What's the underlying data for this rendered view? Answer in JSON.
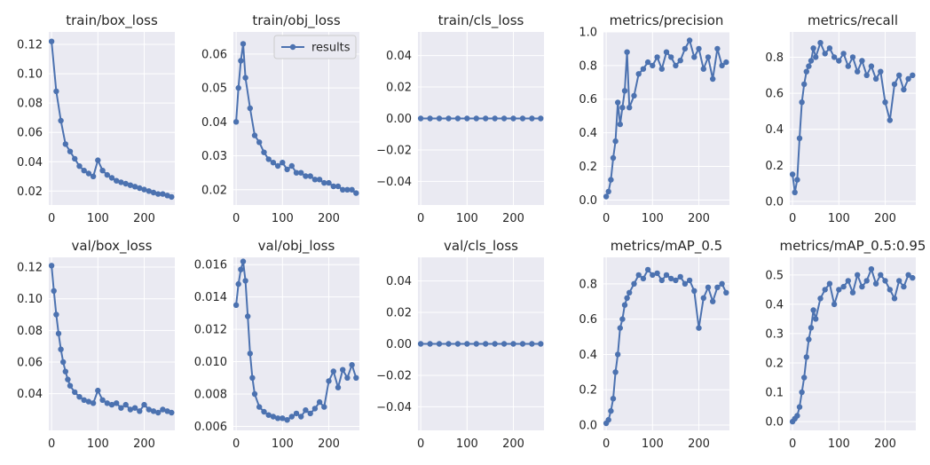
{
  "figure": {
    "background": "#ffffff",
    "panel_background": "#eaeaf2",
    "grid_color": "#ffffff",
    "series_color": "#4c72b0",
    "legend_label": "results",
    "legend_panel": "train/obj_loss",
    "legend_position": "top-right"
  },
  "chart_data": [
    {
      "type": "line",
      "title": "train/box_loss",
      "xlabel": "",
      "ylabel": "",
      "xlim": [
        -6,
        266
      ],
      "ylim": [
        0.0105,
        0.1285
      ],
      "xticks": [
        "0",
        "100",
        "200"
      ],
      "yticks": [
        "0.02",
        "0.04",
        "0.06",
        "0.08",
        "0.10",
        "0.12"
      ],
      "x": [
        0,
        10,
        20,
        30,
        40,
        50,
        60,
        70,
        80,
        90,
        100,
        110,
        120,
        130,
        140,
        150,
        160,
        170,
        180,
        190,
        200,
        210,
        220,
        230,
        240,
        250,
        259
      ],
      "series": [
        {
          "name": "results",
          "values": [
            0.122,
            0.088,
            0.068,
            0.052,
            0.047,
            0.042,
            0.037,
            0.034,
            0.032,
            0.03,
            0.041,
            0.034,
            0.031,
            0.029,
            0.027,
            0.026,
            0.025,
            0.024,
            0.023,
            0.022,
            0.021,
            0.02,
            0.019,
            0.018,
            0.018,
            0.017,
            0.016
          ]
        }
      ]
    },
    {
      "type": "line",
      "title": "train/obj_loss",
      "xlabel": "",
      "ylabel": "",
      "xlim": [
        -6,
        266
      ],
      "ylim": [
        0.0155,
        0.0665
      ],
      "xticks": [
        "0",
        "100",
        "200"
      ],
      "yticks": [
        "0.02",
        "0.03",
        "0.04",
        "0.05",
        "0.06"
      ],
      "x": [
        0,
        5,
        10,
        15,
        20,
        30,
        40,
        50,
        60,
        70,
        80,
        90,
        100,
        110,
        120,
        130,
        140,
        150,
        160,
        170,
        180,
        190,
        200,
        210,
        220,
        230,
        240,
        250,
        259
      ],
      "series": [
        {
          "name": "results",
          "values": [
            0.04,
            0.05,
            0.058,
            0.063,
            0.053,
            0.044,
            0.036,
            0.034,
            0.031,
            0.029,
            0.028,
            0.027,
            0.028,
            0.026,
            0.027,
            0.025,
            0.025,
            0.024,
            0.024,
            0.023,
            0.023,
            0.022,
            0.022,
            0.021,
            0.021,
            0.02,
            0.02,
            0.02,
            0.019
          ]
        }
      ]
    },
    {
      "type": "line",
      "title": "train/cls_loss",
      "xlabel": "",
      "ylabel": "",
      "xlim": [
        -6,
        266
      ],
      "ylim": [
        -0.055,
        0.055
      ],
      "xticks": [
        "0",
        "100",
        "200"
      ],
      "yticks": [
        "−0.04",
        "−0.02",
        "0.00",
        "0.02",
        "0.04"
      ],
      "x": [
        0,
        20,
        40,
        60,
        80,
        100,
        120,
        140,
        160,
        180,
        200,
        220,
        240,
        259
      ],
      "series": [
        {
          "name": "results",
          "values": [
            0,
            0,
            0,
            0,
            0,
            0,
            0,
            0,
            0,
            0,
            0,
            0,
            0,
            0
          ]
        }
      ]
    },
    {
      "type": "line",
      "title": "metrics/precision",
      "xlabel": "",
      "ylabel": "",
      "xlim": [
        -6,
        266
      ],
      "ylim": [
        -0.03,
        1.0
      ],
      "xticks": [
        "0",
        "100",
        "200"
      ],
      "yticks": [
        "0.0",
        "0.2",
        "0.4",
        "0.6",
        "0.8",
        "1.0"
      ],
      "x": [
        0,
        5,
        10,
        15,
        20,
        25,
        30,
        35,
        40,
        45,
        50,
        60,
        70,
        80,
        90,
        100,
        110,
        120,
        130,
        140,
        150,
        160,
        170,
        180,
        190,
        200,
        210,
        220,
        230,
        240,
        250,
        259
      ],
      "series": [
        {
          "name": "results",
          "values": [
            0.02,
            0.05,
            0.12,
            0.25,
            0.35,
            0.58,
            0.45,
            0.55,
            0.65,
            0.88,
            0.55,
            0.62,
            0.75,
            0.78,
            0.82,
            0.8,
            0.85,
            0.78,
            0.88,
            0.85,
            0.8,
            0.83,
            0.9,
            0.95,
            0.85,
            0.9,
            0.78,
            0.85,
            0.72,
            0.9,
            0.8,
            0.82
          ]
        }
      ]
    },
    {
      "type": "line",
      "title": "metrics/recall",
      "xlabel": "",
      "ylabel": "",
      "xlim": [
        -6,
        266
      ],
      "ylim": [
        -0.02,
        0.94
      ],
      "xticks": [
        "0",
        "100",
        "200"
      ],
      "yticks": [
        "0.0",
        "0.2",
        "0.4",
        "0.6",
        "0.8"
      ],
      "x": [
        0,
        5,
        10,
        15,
        20,
        25,
        30,
        35,
        40,
        45,
        50,
        60,
        70,
        80,
        90,
        100,
        110,
        120,
        130,
        140,
        150,
        160,
        170,
        180,
        190,
        200,
        210,
        220,
        230,
        240,
        250,
        259
      ],
      "series": [
        {
          "name": "results",
          "values": [
            0.15,
            0.05,
            0.12,
            0.35,
            0.55,
            0.65,
            0.72,
            0.75,
            0.78,
            0.85,
            0.8,
            0.88,
            0.82,
            0.85,
            0.8,
            0.78,
            0.82,
            0.75,
            0.8,
            0.72,
            0.78,
            0.7,
            0.75,
            0.68,
            0.72,
            0.55,
            0.45,
            0.65,
            0.7,
            0.62,
            0.68,
            0.7
          ]
        }
      ]
    },
    {
      "type": "line",
      "title": "val/box_loss",
      "xlabel": "",
      "ylabel": "",
      "xlim": [
        -6,
        266
      ],
      "ylim": [
        0.0168,
        0.1262
      ],
      "xticks": [
        "0",
        "100",
        "200"
      ],
      "yticks": [
        "0.04",
        "0.06",
        "0.08",
        "0.10",
        "0.12"
      ],
      "x": [
        0,
        5,
        10,
        15,
        20,
        25,
        30,
        35,
        40,
        50,
        60,
        70,
        80,
        90,
        100,
        110,
        120,
        130,
        140,
        150,
        160,
        170,
        180,
        190,
        200,
        210,
        220,
        230,
        240,
        250,
        259
      ],
      "series": [
        {
          "name": "results",
          "values": [
            0.121,
            0.105,
            0.09,
            0.078,
            0.068,
            0.06,
            0.054,
            0.049,
            0.045,
            0.041,
            0.038,
            0.036,
            0.035,
            0.034,
            0.042,
            0.036,
            0.034,
            0.033,
            0.034,
            0.031,
            0.033,
            0.03,
            0.031,
            0.029,
            0.033,
            0.03,
            0.029,
            0.028,
            0.03,
            0.029,
            0.028
          ]
        }
      ]
    },
    {
      "type": "line",
      "title": "val/obj_loss",
      "xlabel": "",
      "ylabel": "",
      "xlim": [
        -6,
        266
      ],
      "ylim": [
        0.00575,
        0.01645
      ],
      "xticks": [
        "0",
        "100",
        "200"
      ],
      "yticks": [
        "0.006",
        "0.008",
        "0.010",
        "0.012",
        "0.014",
        "0.016"
      ],
      "x": [
        0,
        5,
        10,
        15,
        20,
        25,
        30,
        35,
        40,
        50,
        60,
        70,
        80,
        90,
        100,
        110,
        120,
        130,
        140,
        150,
        160,
        170,
        180,
        190,
        200,
        210,
        220,
        230,
        240,
        250,
        259
      ],
      "series": [
        {
          "name": "results",
          "values": [
            0.0135,
            0.0148,
            0.0157,
            0.0162,
            0.015,
            0.0128,
            0.0105,
            0.009,
            0.008,
            0.0072,
            0.0069,
            0.0067,
            0.0066,
            0.0065,
            0.0065,
            0.0064,
            0.0066,
            0.0068,
            0.0066,
            0.007,
            0.0068,
            0.0071,
            0.0075,
            0.0072,
            0.0088,
            0.0094,
            0.0084,
            0.0095,
            0.009,
            0.0098,
            0.009
          ]
        }
      ]
    },
    {
      "type": "line",
      "title": "val/cls_loss",
      "xlabel": "",
      "ylabel": "",
      "xlim": [
        -6,
        266
      ],
      "ylim": [
        -0.055,
        0.055
      ],
      "xticks": [
        "0",
        "100",
        "200"
      ],
      "yticks": [
        "−0.04",
        "−0.02",
        "0.00",
        "0.02",
        "0.04"
      ],
      "x": [
        0,
        20,
        40,
        60,
        80,
        100,
        120,
        140,
        160,
        180,
        200,
        220,
        240,
        259
      ],
      "series": [
        {
          "name": "results",
          "values": [
            0,
            0,
            0,
            0,
            0,
            0,
            0,
            0,
            0,
            0,
            0,
            0,
            0,
            0
          ]
        }
      ]
    },
    {
      "type": "line",
      "title": "metrics/mAP_0.5",
      "xlabel": "",
      "ylabel": "",
      "xlim": [
        -6,
        266
      ],
      "ylim": [
        -0.03,
        0.95
      ],
      "xticks": [
        "0",
        "100",
        "200"
      ],
      "yticks": [
        "0.0",
        "0.2",
        "0.4",
        "0.6",
        "0.8"
      ],
      "x": [
        0,
        5,
        10,
        15,
        20,
        25,
        30,
        35,
        40,
        45,
        50,
        60,
        70,
        80,
        90,
        100,
        110,
        120,
        130,
        140,
        150,
        160,
        170,
        180,
        190,
        200,
        210,
        220,
        230,
        240,
        250,
        259
      ],
      "series": [
        {
          "name": "results",
          "values": [
            0.01,
            0.03,
            0.08,
            0.15,
            0.3,
            0.4,
            0.55,
            0.6,
            0.68,
            0.72,
            0.75,
            0.8,
            0.85,
            0.83,
            0.88,
            0.85,
            0.86,
            0.82,
            0.85,
            0.83,
            0.82,
            0.84,
            0.8,
            0.82,
            0.76,
            0.55,
            0.72,
            0.78,
            0.7,
            0.78,
            0.8,
            0.75
          ]
        }
      ]
    },
    {
      "type": "line",
      "title": "metrics/mAP_0.5:0.95",
      "xlabel": "",
      "ylabel": "",
      "xlim": [
        -6,
        266
      ],
      "ylim": [
        -0.03,
        0.56
      ],
      "xticks": [
        "0",
        "100",
        "200"
      ],
      "yticks": [
        "0.0",
        "0.1",
        "0.2",
        "0.3",
        "0.4",
        "0.5"
      ],
      "x": [
        0,
        5,
        10,
        15,
        20,
        25,
        30,
        35,
        40,
        45,
        50,
        60,
        70,
        80,
        90,
        100,
        110,
        120,
        130,
        140,
        150,
        160,
        170,
        180,
        190,
        200,
        210,
        220,
        230,
        240,
        250,
        259
      ],
      "series": [
        {
          "name": "results",
          "values": [
            0.0,
            0.01,
            0.02,
            0.05,
            0.1,
            0.15,
            0.22,
            0.28,
            0.32,
            0.38,
            0.35,
            0.42,
            0.45,
            0.47,
            0.4,
            0.45,
            0.46,
            0.48,
            0.44,
            0.5,
            0.46,
            0.48,
            0.52,
            0.47,
            0.5,
            0.48,
            0.45,
            0.42,
            0.48,
            0.46,
            0.5,
            0.49
          ]
        }
      ]
    }
  ]
}
